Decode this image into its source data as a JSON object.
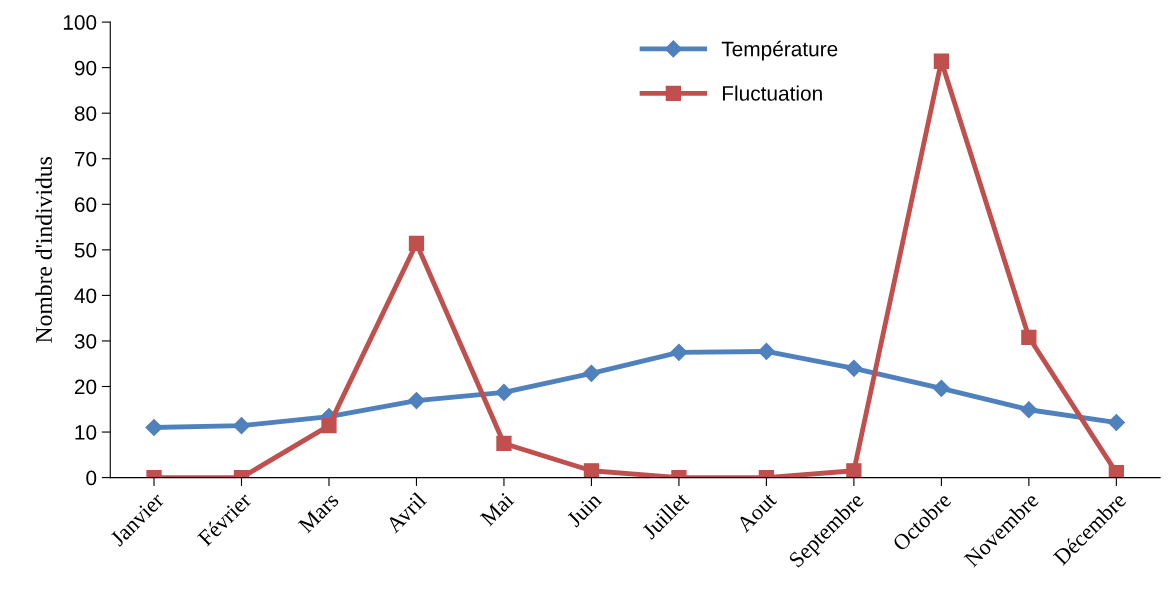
{
  "chart_data": {
    "type": "line",
    "ylabel": "Nombre d'individus",
    "categories": [
      "Janvier",
      "Février",
      "Mars",
      "Avril",
      "Mai",
      "Juin",
      "Juillet",
      "Aout",
      "Septembre",
      "Octobre",
      "Novembre",
      "Décembre"
    ],
    "series": [
      {
        "name": "Température",
        "color": "#4f81bd",
        "marker": "diamond",
        "values": [
          11.0,
          11.4,
          13.4,
          16.9,
          18.7,
          22.9,
          27.5,
          27.7,
          24.0,
          19.6,
          14.9,
          12.1
        ]
      },
      {
        "name": "Fluctuation",
        "color": "#c0504d",
        "marker": "square",
        "values": [
          0,
          0,
          11.4,
          51.4,
          7.5,
          1.5,
          0,
          0,
          1.5,
          91.4,
          30.8,
          1.1
        ]
      }
    ],
    "ylim": [
      0,
      100
    ],
    "yticks": [
      0,
      10,
      20,
      30,
      40,
      50,
      60,
      70,
      80,
      90,
      100
    ],
    "grid": false,
    "legend": "top",
    "line_style": "solid"
  }
}
